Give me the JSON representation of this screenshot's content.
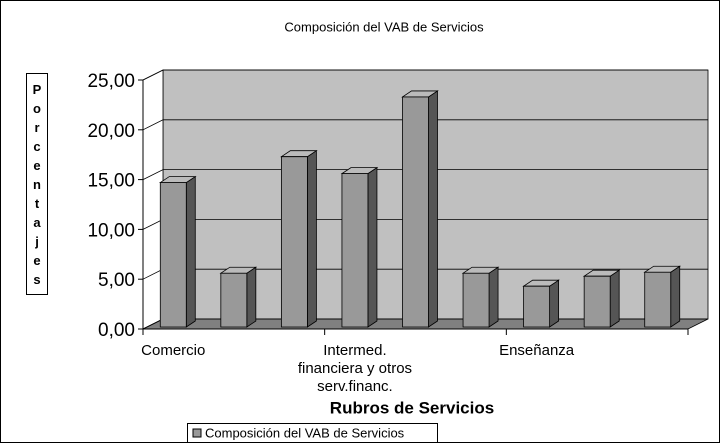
{
  "chart_data": {
    "type": "bar3d",
    "title": "Composición del VAB de Servicios",
    "x_label": "Rubros de Servicios",
    "y_label": "Porcentajes",
    "categories": [
      "Comercio",
      null,
      null,
      "Intermed. financiera y otros serv.financ.",
      null,
      null,
      "Enseñanza",
      null,
      null
    ],
    "series": [
      {
        "name": "Composición del VAB de Servicios",
        "color": "#999999",
        "values": [
          14.7,
          5.6,
          17.3,
          15.6,
          23.3,
          5.6,
          4.3,
          5.3,
          5.7
        ]
      }
    ],
    "ylim": [
      0,
      25
    ],
    "yticks": [
      {
        "value": 0,
        "label": "0,00"
      },
      {
        "value": 5,
        "label": "5,00"
      },
      {
        "value": 10,
        "label": "10,00"
      },
      {
        "value": 15,
        "label": "15,00"
      },
      {
        "value": 20,
        "label": "20,00"
      },
      {
        "value": 25,
        "label": "25,00"
      }
    ],
    "grid": true,
    "legend": "bottom"
  }
}
